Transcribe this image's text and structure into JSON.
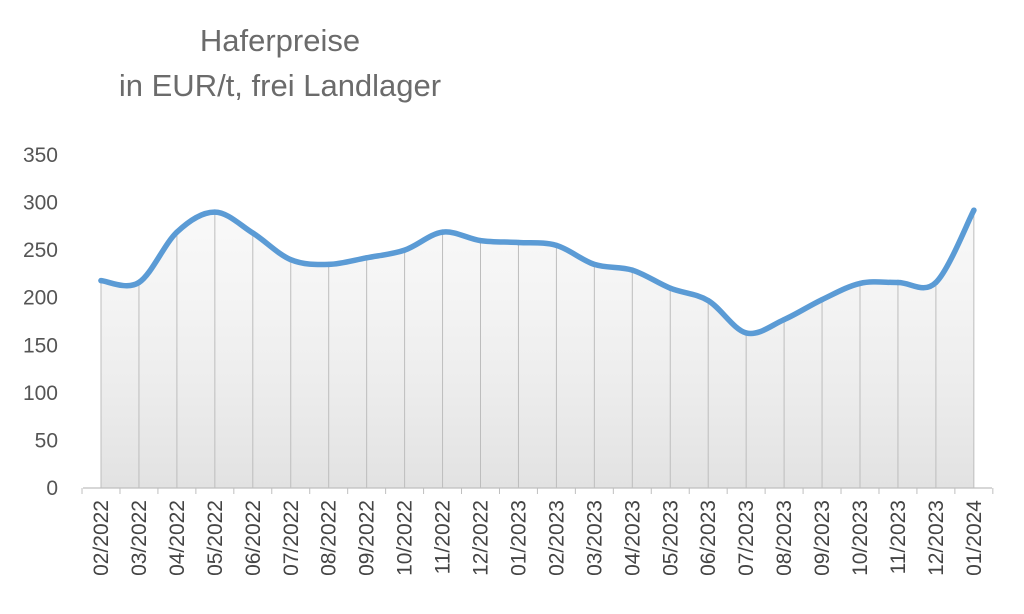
{
  "chart_data": {
    "type": "line",
    "title_line1": "Haferpreise",
    "title_line2": "in EUR/t, frei Landlager",
    "xlabel": "",
    "ylabel": "",
    "ylim": [
      0,
      350
    ],
    "yticks": [
      0,
      50,
      100,
      150,
      200,
      250,
      300,
      350
    ],
    "categories": [
      "02/2022",
      "03/2022",
      "04/2022",
      "05/2022",
      "06/2022",
      "07/2022",
      "08/2022",
      "09/2022",
      "10/2022",
      "11/2022",
      "12/2022",
      "01/2023",
      "02/2023",
      "03/2023",
      "04/2023",
      "05/2023",
      "06/2023",
      "07/2023",
      "08/2023",
      "09/2023",
      "10/2023",
      "11/2023",
      "12/2023",
      "01/2024"
    ],
    "series": [
      {
        "values": [
          218,
          216,
          269,
          290,
          268,
          240,
          235,
          242,
          250,
          269,
          260,
          258,
          255,
          235,
          229,
          210,
          197,
          163,
          177,
          198,
          215,
          216,
          216,
          292
        ],
        "color": "#5b9bd5"
      }
    ],
    "area_fill": "light-gray-gradient",
    "vertical_gridlines": true,
    "horizontal_gridlines": false,
    "legend": "none"
  }
}
